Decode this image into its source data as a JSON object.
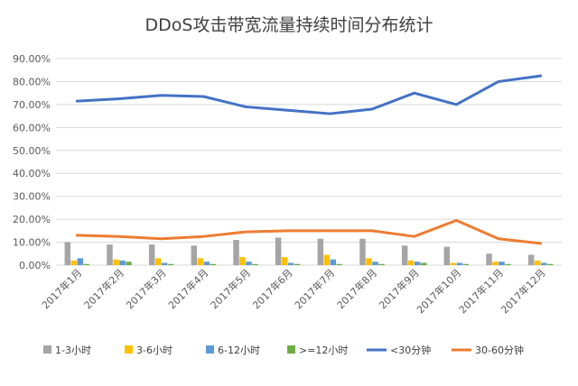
{
  "chart_data": {
    "type": "bar",
    "title": "DDoS攻击带宽流量持续时间分布统计",
    "categories": [
      "2017年1月",
      "2017年2月",
      "2017年3月",
      "2017年4月",
      "2017年5月",
      "2017年6月",
      "2017年7月",
      "2017年8月",
      "2017年9月",
      "2017年10月",
      "2017年11月",
      "2017年12月"
    ],
    "ylim": [
      0,
      90
    ],
    "ytick_labels": [
      "0.00%",
      "10.00%",
      "20.00%",
      "30.00%",
      "40.00%",
      "50.00%",
      "60.00%",
      "70.00%",
      "80.00%",
      "90.00%"
    ],
    "grid": true,
    "legend_position": "bottom",
    "series": [
      {
        "name": "1-3小时",
        "kind": "bar",
        "color": "#a5a5a5",
        "values": [
          10.0,
          9.0,
          9.0,
          8.5,
          11.0,
          12.0,
          11.5,
          11.5,
          8.5,
          8.0,
          5.0,
          4.5
        ]
      },
      {
        "name": "3-6小时",
        "kind": "bar",
        "color": "#ffc000",
        "values": [
          2.0,
          2.5,
          3.0,
          3.0,
          3.5,
          3.5,
          4.5,
          3.0,
          2.0,
          1.0,
          1.5,
          2.0
        ]
      },
      {
        "name": "6-12小时",
        "kind": "bar",
        "color": "#5b9bd5",
        "values": [
          3.0,
          2.0,
          1.0,
          1.5,
          1.5,
          1.0,
          2.5,
          1.5,
          1.5,
          1.0,
          1.5,
          1.0
        ]
      },
      {
        "name": ">=12小时",
        "kind": "bar",
        "color": "#70ad47",
        "values": [
          0.5,
          1.5,
          0.5,
          0.5,
          0.5,
          0.5,
          0.5,
          0.5,
          1.0,
          0.5,
          0.5,
          0.5
        ]
      },
      {
        "name": "<30分钟",
        "kind": "line",
        "color": "#4472c4",
        "values": [
          71.5,
          72.5,
          74.0,
          73.5,
          69.0,
          67.5,
          66.0,
          68.0,
          75.0,
          70.0,
          80.0,
          82.5
        ]
      },
      {
        "name": "30-60分钟",
        "kind": "line",
        "color": "#ed7d31",
        "values": [
          13.0,
          12.5,
          11.5,
          12.5,
          14.5,
          15.0,
          15.0,
          15.0,
          12.5,
          19.5,
          11.5,
          9.5
        ]
      }
    ]
  }
}
